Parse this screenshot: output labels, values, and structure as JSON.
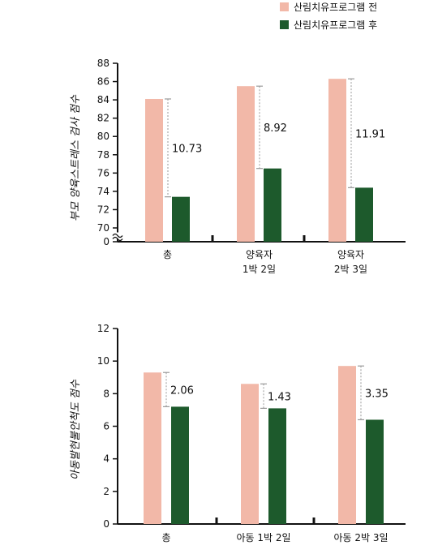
{
  "legend": {
    "before_label": "산림치유프로그램 전",
    "after_label": "산림치유프로그램 후",
    "before_color": "#f2b8a8",
    "after_color": "#1d5a2c"
  },
  "chart_data": [
    {
      "type": "bar",
      "ylabel": "부모 양육스트레스 검사 점수",
      "ylim": [
        70,
        88
      ],
      "axis_break": true,
      "yticks": [
        0,
        70,
        72,
        74,
        76,
        78,
        80,
        82,
        84,
        86,
        88
      ],
      "categories": [
        "총",
        "양육자\n1박 2일",
        "양육자\n2박 3일"
      ],
      "series": [
        {
          "name": "산림치유프로그램 전",
          "values": [
            84.1,
            85.5,
            86.3
          ]
        },
        {
          "name": "산림치유프로그램 후",
          "values": [
            73.4,
            76.5,
            74.4
          ]
        }
      ],
      "annotations": [
        "10.73",
        "8.92",
        "11.91"
      ],
      "grid": false
    },
    {
      "type": "bar",
      "ylabel": "아동발현불안척도 점수",
      "ylim": [
        0,
        12
      ],
      "axis_break": false,
      "yticks": [
        0,
        2,
        4,
        6,
        8,
        10,
        12
      ],
      "categories": [
        "총",
        "아동 1박 2일",
        "아동 2박 3일"
      ],
      "series": [
        {
          "name": "산림치유프로그램 전",
          "values": [
            9.3,
            8.6,
            9.7
          ]
        },
        {
          "name": "산림치유프로그램 후",
          "values": [
            7.2,
            7.1,
            6.4
          ]
        }
      ],
      "annotations": [
        "2.06",
        "1.43",
        "3.35"
      ],
      "grid": false
    }
  ]
}
